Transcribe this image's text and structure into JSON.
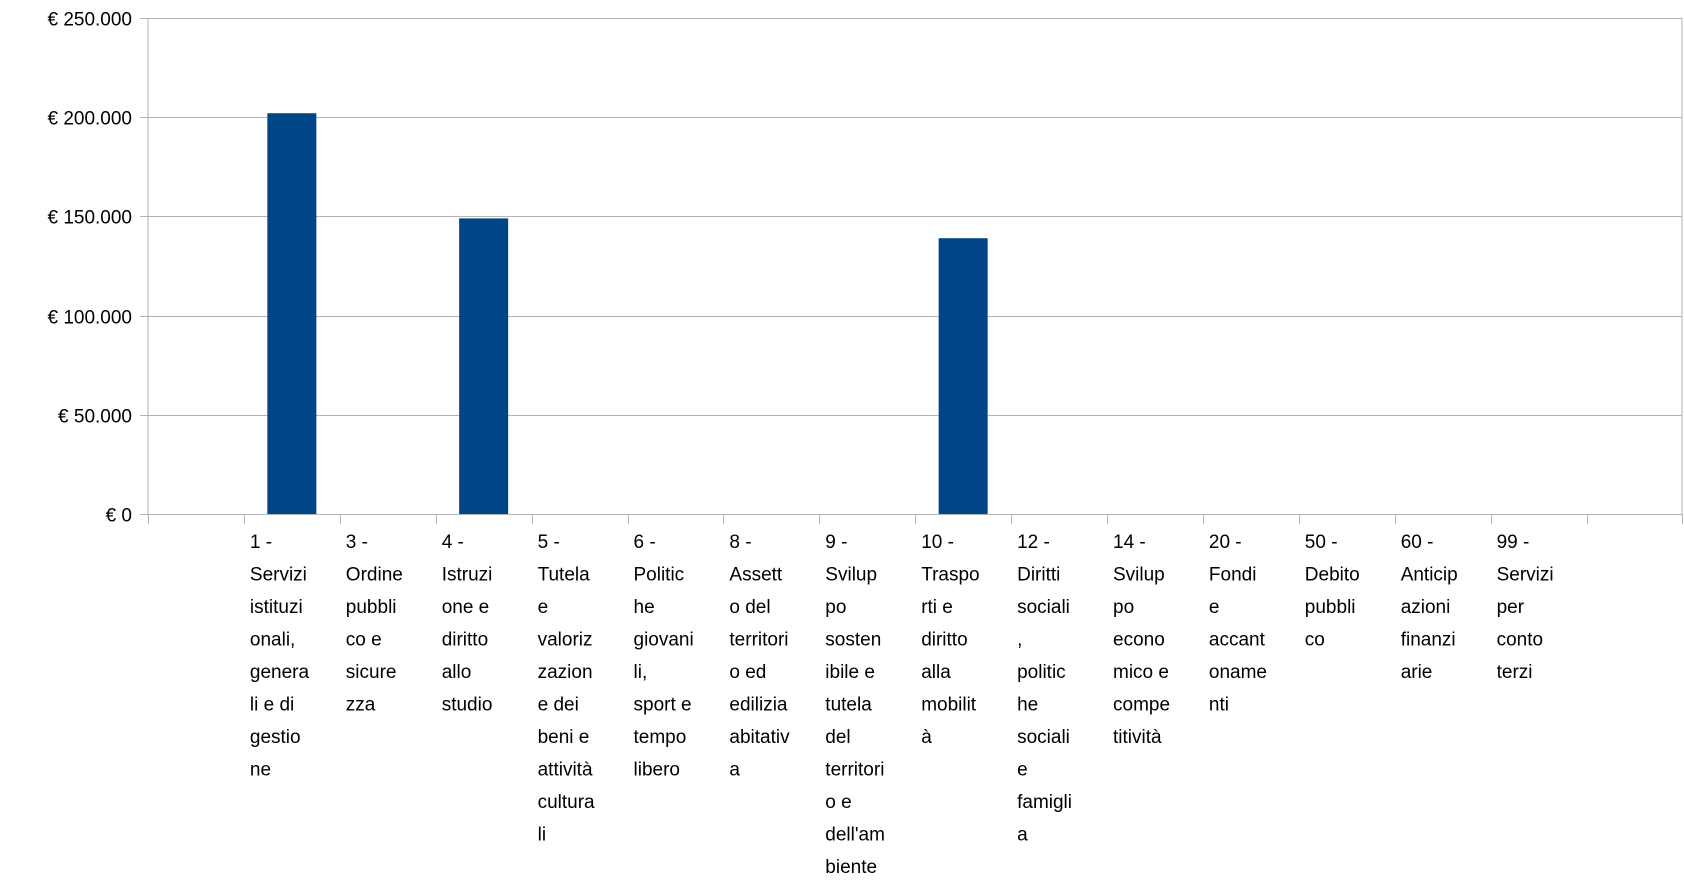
{
  "chart_data": {
    "type": "bar",
    "title": "",
    "xlabel": "",
    "ylabel": "",
    "ylim": [
      0,
      250000
    ],
    "grid": true,
    "legend": "none",
    "bar_color": "#004586",
    "grid_color": "#b3b3b3",
    "y_ticks": [
      {
        "value": 0,
        "label": "€ 0"
      },
      {
        "value": 50000,
        "label": "€ 50.000"
      },
      {
        "value": 100000,
        "label": "€ 100.000"
      },
      {
        "value": 150000,
        "label": "€ 150.000"
      },
      {
        "value": 200000,
        "label": "€ 200.000"
      },
      {
        "value": 250000,
        "label": "€ 250.000"
      }
    ],
    "categories": [
      {
        "label": "1 - Servizi istituzionali, generali e di gestione",
        "lines": [
          "1 -",
          "Servizi",
          "istituzi",
          "onali,",
          "genera",
          "li e di",
          "gestio",
          "ne"
        ]
      },
      {
        "label": "3 - Ordine pubblico e sicurezza",
        "lines": [
          "3 -",
          "Ordine",
          "pubbli",
          "co e",
          "sicure",
          "zza"
        ]
      },
      {
        "label": "4 - Istruzione e diritto allo studio",
        "lines": [
          "4 -",
          "Istruzi",
          "one e",
          "diritto",
          "allo",
          "studio"
        ]
      },
      {
        "label": "5 - Tutela e valorizzazione dei beni e attività culturali",
        "lines": [
          "5 -",
          "Tutela",
          "e",
          "valoriz",
          "zazion",
          "e dei",
          "beni e",
          "attività",
          "cultura",
          "li"
        ]
      },
      {
        "label": "6 - Politiche giovanili, sport e tempo libero",
        "lines": [
          "6 -",
          "Politic",
          "he",
          "giovani",
          "li,",
          "sport e",
          "tempo",
          "libero"
        ]
      },
      {
        "label": "8 - Assetto del territorio ed edilizia abitativa",
        "lines": [
          "8 -",
          "Assett",
          "o del",
          "territori",
          "o ed",
          "edilizia",
          "abitativ",
          "a"
        ]
      },
      {
        "label": "9 - Sviluppo sostenibile e tutela del territorio e dell'ambiente",
        "lines": [
          "9 -",
          "Svilup",
          "po",
          "sosten",
          "ibile e",
          "tutela",
          "del",
          "territori",
          "o e",
          "dell'am",
          "biente"
        ]
      },
      {
        "label": "10 - Trasporti e diritto alla mobilità",
        "lines": [
          "10 -",
          "Traspo",
          "rti e",
          "diritto",
          "alla",
          "mobilit",
          "à"
        ]
      },
      {
        "label": "12 - Diritti sociali, politiche sociali e famiglia",
        "lines": [
          "12 -",
          "Diritti",
          "sociali",
          ",",
          "politic",
          "he",
          "sociali",
          "e",
          "famigli",
          "a"
        ]
      },
      {
        "label": "14 - Sviluppo economico e competitività",
        "lines": [
          "14 -",
          "Svilup",
          "po",
          "econo",
          "mico e",
          "compe",
          "titività"
        ]
      },
      {
        "label": "20 - Fondi e accantonamenti",
        "lines": [
          "20 -",
          "Fondi",
          "e",
          "accant",
          "oname",
          "nti"
        ]
      },
      {
        "label": "50 - Debito pubblico",
        "lines": [
          "50 -",
          "Debito",
          "pubbli",
          "co"
        ]
      },
      {
        "label": "60 - Anticipazioni finanziarie",
        "lines": [
          "60 -",
          "Anticip",
          "azioni",
          "finanzi",
          "arie"
        ]
      },
      {
        "label": "99 - Servizi per conto terzi",
        "lines": [
          "99 -",
          "Servizi",
          "per",
          "conto",
          "terzi"
        ]
      }
    ],
    "values": [
      202000,
      0,
      149000,
      0,
      0,
      0,
      0,
      139000,
      0,
      0,
      0,
      0,
      0,
      0
    ]
  }
}
